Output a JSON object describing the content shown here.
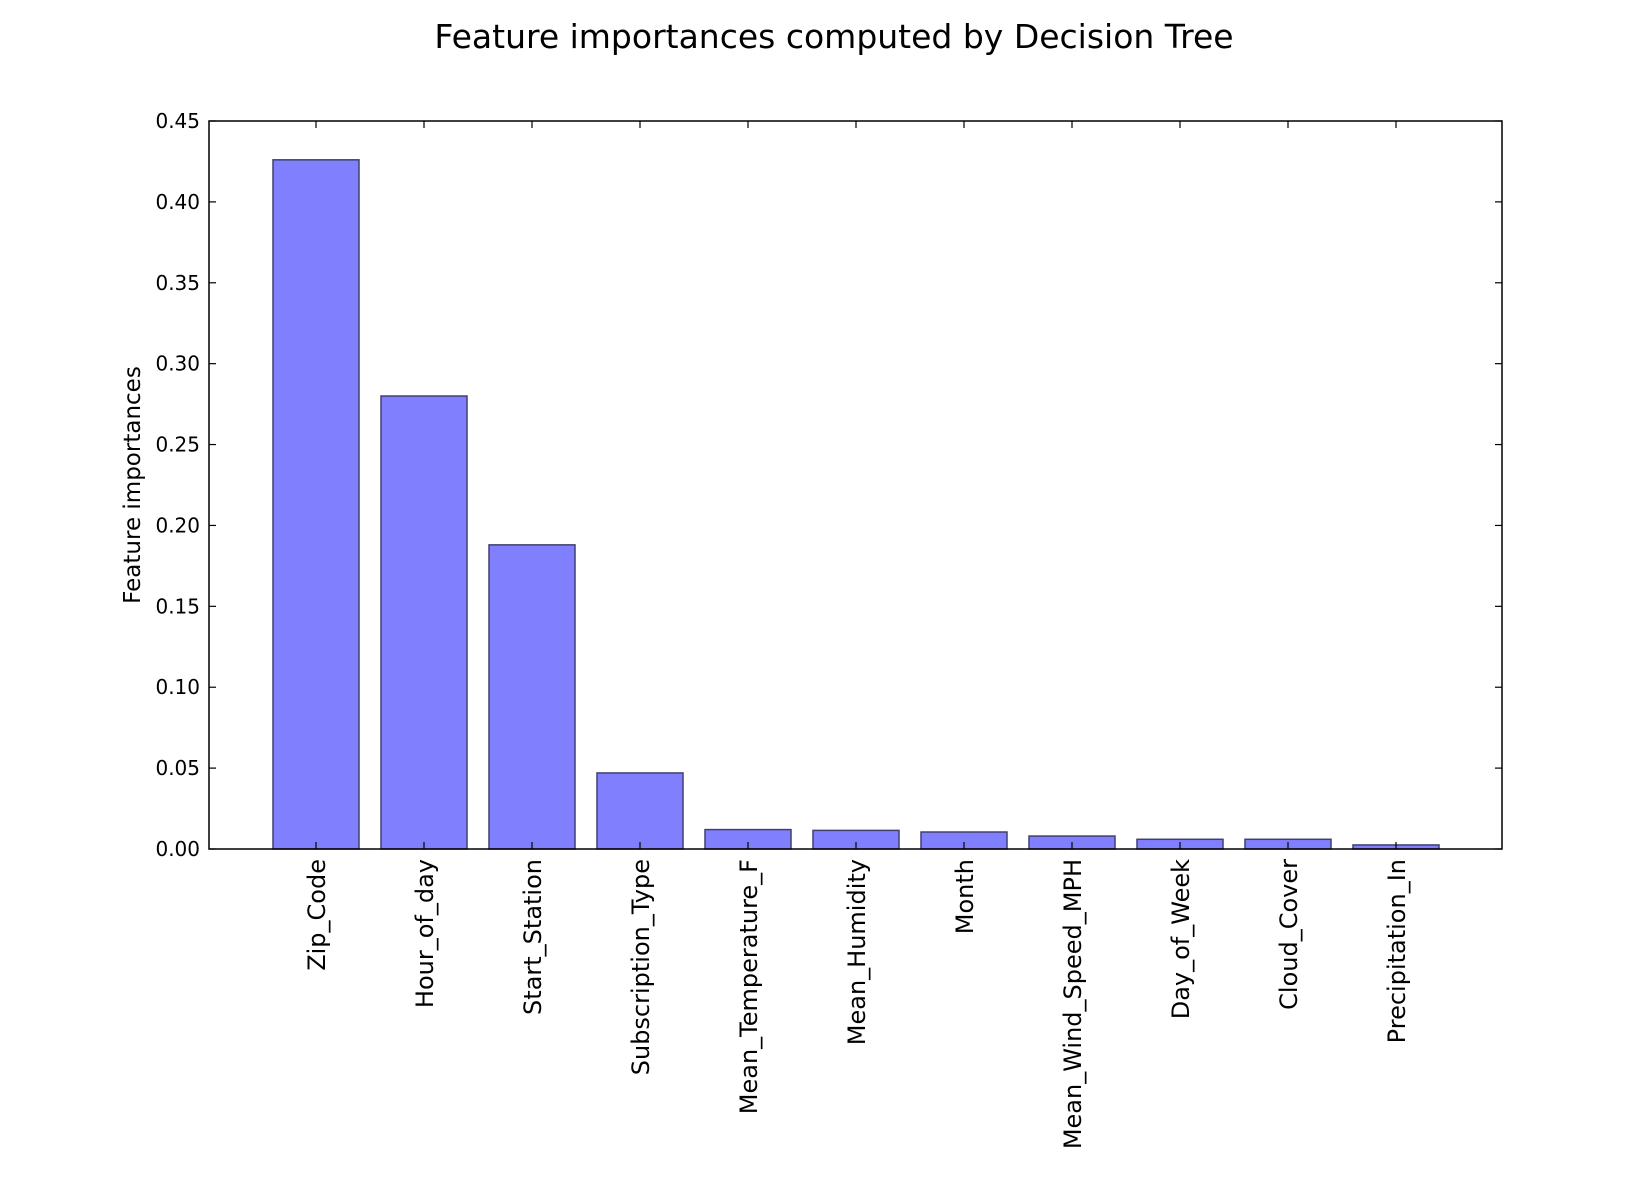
{
  "chart_data": {
    "type": "bar",
    "title": "Feature importances computed by Decision Tree",
    "xlabel": "",
    "ylabel": "Feature importances",
    "categories": [
      "Zip_Code",
      "Hour_of_day",
      "Start_Station",
      "Subscription_Type",
      "Mean_Temperature_F",
      "Mean_Humidity",
      "Month",
      "Mean_Wind_Speed_MPH",
      "Day_of_Week",
      "Cloud_Cover",
      "Precipitation_In"
    ],
    "values": [
      0.426,
      0.28,
      0.188,
      0.047,
      0.012,
      0.0115,
      0.0105,
      0.008,
      0.006,
      0.006,
      0.0025
    ],
    "ylim": [
      0,
      0.45
    ],
    "yticks": [
      "0.00",
      "0.05",
      "0.10",
      "0.15",
      "0.20",
      "0.25",
      "0.30",
      "0.35",
      "0.40",
      "0.45"
    ],
    "grid": false,
    "colors": {
      "bar_fill": "#8080ff",
      "bar_stroke": "#404070",
      "axis": "#000000",
      "background": "#ffffff"
    }
  }
}
